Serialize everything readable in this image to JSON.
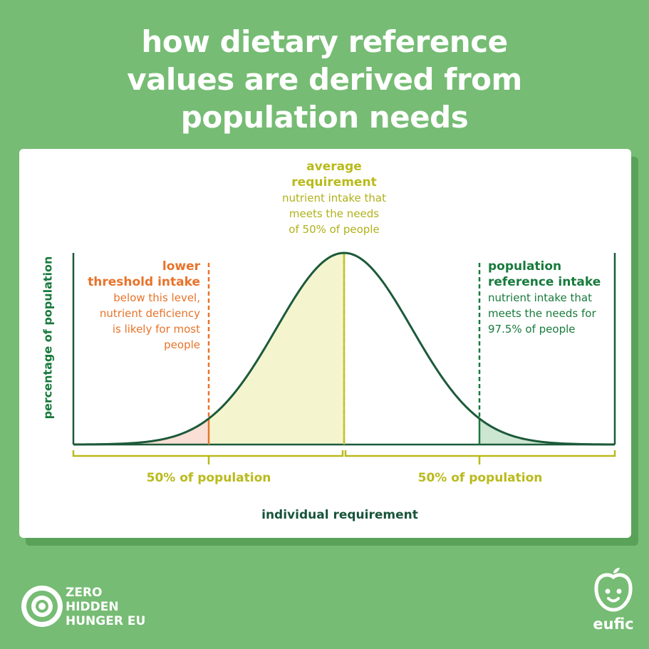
{
  "title": {
    "lines": [
      "how dietary reference",
      "values are derived from",
      "population needs"
    ]
  },
  "labels": {
    "average_heading": [
      "average",
      "requirement"
    ],
    "average_text": [
      "nutrient intake that",
      "meets the needs",
      "of 50% of people"
    ],
    "lower_heading": [
      "lower",
      "threshold intake"
    ],
    "lower_text": [
      "below this level,",
      "nutrient deficiency",
      "is likely for most",
      "people"
    ],
    "pri_heading": [
      "population",
      "reference intake"
    ],
    "pri_text": [
      "nutrient intake that",
      "meets the needs for",
      "97.5% of people"
    ]
  },
  "axes": {
    "y_label": "percentage of population",
    "x_label": "individual requirement",
    "left_half": "50% of population",
    "right_half": "50% of population"
  },
  "chart_data": {
    "type": "area",
    "distribution": "normal",
    "mean": 0,
    "sd": 1,
    "x_range": [
      -4,
      4
    ],
    "markers": [
      {
        "name": "lower threshold intake",
        "x": -2,
        "color": "#e8732a"
      },
      {
        "name": "average requirement",
        "x": 0,
        "color": "#c2c22a"
      },
      {
        "name": "population reference intake",
        "x": 2,
        "color": "#187a3c"
      }
    ],
    "fills": [
      {
        "from": -4,
        "to": -2,
        "color": "#f9dfd5"
      },
      {
        "from": -2,
        "to": 0,
        "color": "#f4f5cf"
      },
      {
        "from": 2,
        "to": 4,
        "color": "#cde6d2"
      }
    ],
    "curve_color": "#1c5a3a"
  },
  "logos": {
    "zhh": [
      "ZERO",
      "HIDDEN",
      "HUNGER EU"
    ],
    "eufic": "eufic"
  }
}
